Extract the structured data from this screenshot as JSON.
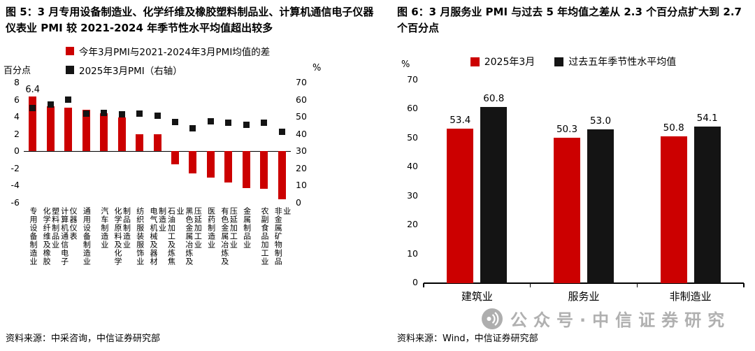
{
  "colors": {
    "red": "#cc0000",
    "black": "#141414",
    "watermark_gray": "#b0b0b0"
  },
  "figure5": {
    "title": "图 5：3 月专用设备制造业、化学纤维及橡胶塑料制品业、计算机通信电子仪器仪表业 PMI 较 2021-2024 年季节性水平均值超出较多",
    "left_axis_unit": "百分点",
    "right_axis_unit": "%",
    "source": "资料来源：中采咨询，中信证券研究部"
  },
  "figure6": {
    "title": "图 6：3 月服务业 PMI 与过去 5 年均值之差从 2.3 个百分点扩大到 2.7 个百分点",
    "axis_unit": "%",
    "source": "资料来源：Wind，中信证券研究部"
  },
  "watermark": {
    "text": "公众号·中信证券研究"
  },
  "chart_data": [
    {
      "id": "figure5",
      "type": "bar",
      "title": "图 5：3 月专用设备制造业、化学纤维及橡胶塑料制品业、计算机通信电子仪器仪表业 PMI 较 2021-2024 年季节性水平均值超出较多",
      "categories": [
        "专用设备制造业",
        "化学纤维及橡胶塑料制品业",
        "计算机通信电子仪器仪表",
        "通用设备制造业",
        "汽车制造业",
        "化学原料及化学制品制造业",
        "纺织服装服饰业",
        "电气机械及器材制造业",
        "石油加工及炼焦业",
        "黑色金属冶炼及压延加工业",
        "医药制造业",
        "有色金属冶炼及压延加工业",
        "金属制品业",
        "农副食品加工业",
        "非金属矿物制品业"
      ],
      "series": [
        {
          "name": "今年3月PMI与2021-2024年3月PMI均值的差",
          "type": "bar",
          "axis": "left",
          "color": "#cc0000",
          "values": [
            6.4,
            5.2,
            5.1,
            4.8,
            4.4,
            3.9,
            2.0,
            2.0,
            -1.5,
            -2.6,
            -3.1,
            -3.6,
            -4.3,
            -4.4,
            -5.6
          ]
        },
        {
          "name": "2025年3月PMI（右轴）",
          "type": "point",
          "axis": "right",
          "color": "#141414",
          "values": [
            55,
            57,
            60,
            52,
            52.5,
            51.5,
            52,
            50.5,
            47,
            43.5,
            47.5,
            46.5,
            45.5,
            46.5,
            41.5
          ]
        }
      ],
      "left_axis": {
        "label": "百分点",
        "min": -6,
        "max": 8,
        "step": 2
      },
      "right_axis": {
        "label": "%",
        "min": 0,
        "max": 70,
        "step": 10
      },
      "data_labels": [
        {
          "series": 0,
          "index": 0,
          "text": "6.4"
        }
      ],
      "legend_position": "top-left",
      "grid": false
    },
    {
      "id": "figure6",
      "type": "bar",
      "title": "图 6：3 月服务业 PMI 与过去 5 年均值之差从 2.3 个百分点扩大到 2.7 个百分点",
      "categories": [
        "建筑业",
        "服务业",
        "非制造业"
      ],
      "series": [
        {
          "name": "2025年3月",
          "color": "#cc0000",
          "values": [
            53.4,
            50.3,
            50.8
          ]
        },
        {
          "name": "过去五年季节性水平均值",
          "color": "#141414",
          "values": [
            60.8,
            53.0,
            54.1
          ]
        }
      ],
      "y_axis": {
        "label": "%",
        "min": 0,
        "max": 70,
        "step": 10
      },
      "data_labels": "all",
      "legend_position": "top-center",
      "grid": false
    }
  ]
}
